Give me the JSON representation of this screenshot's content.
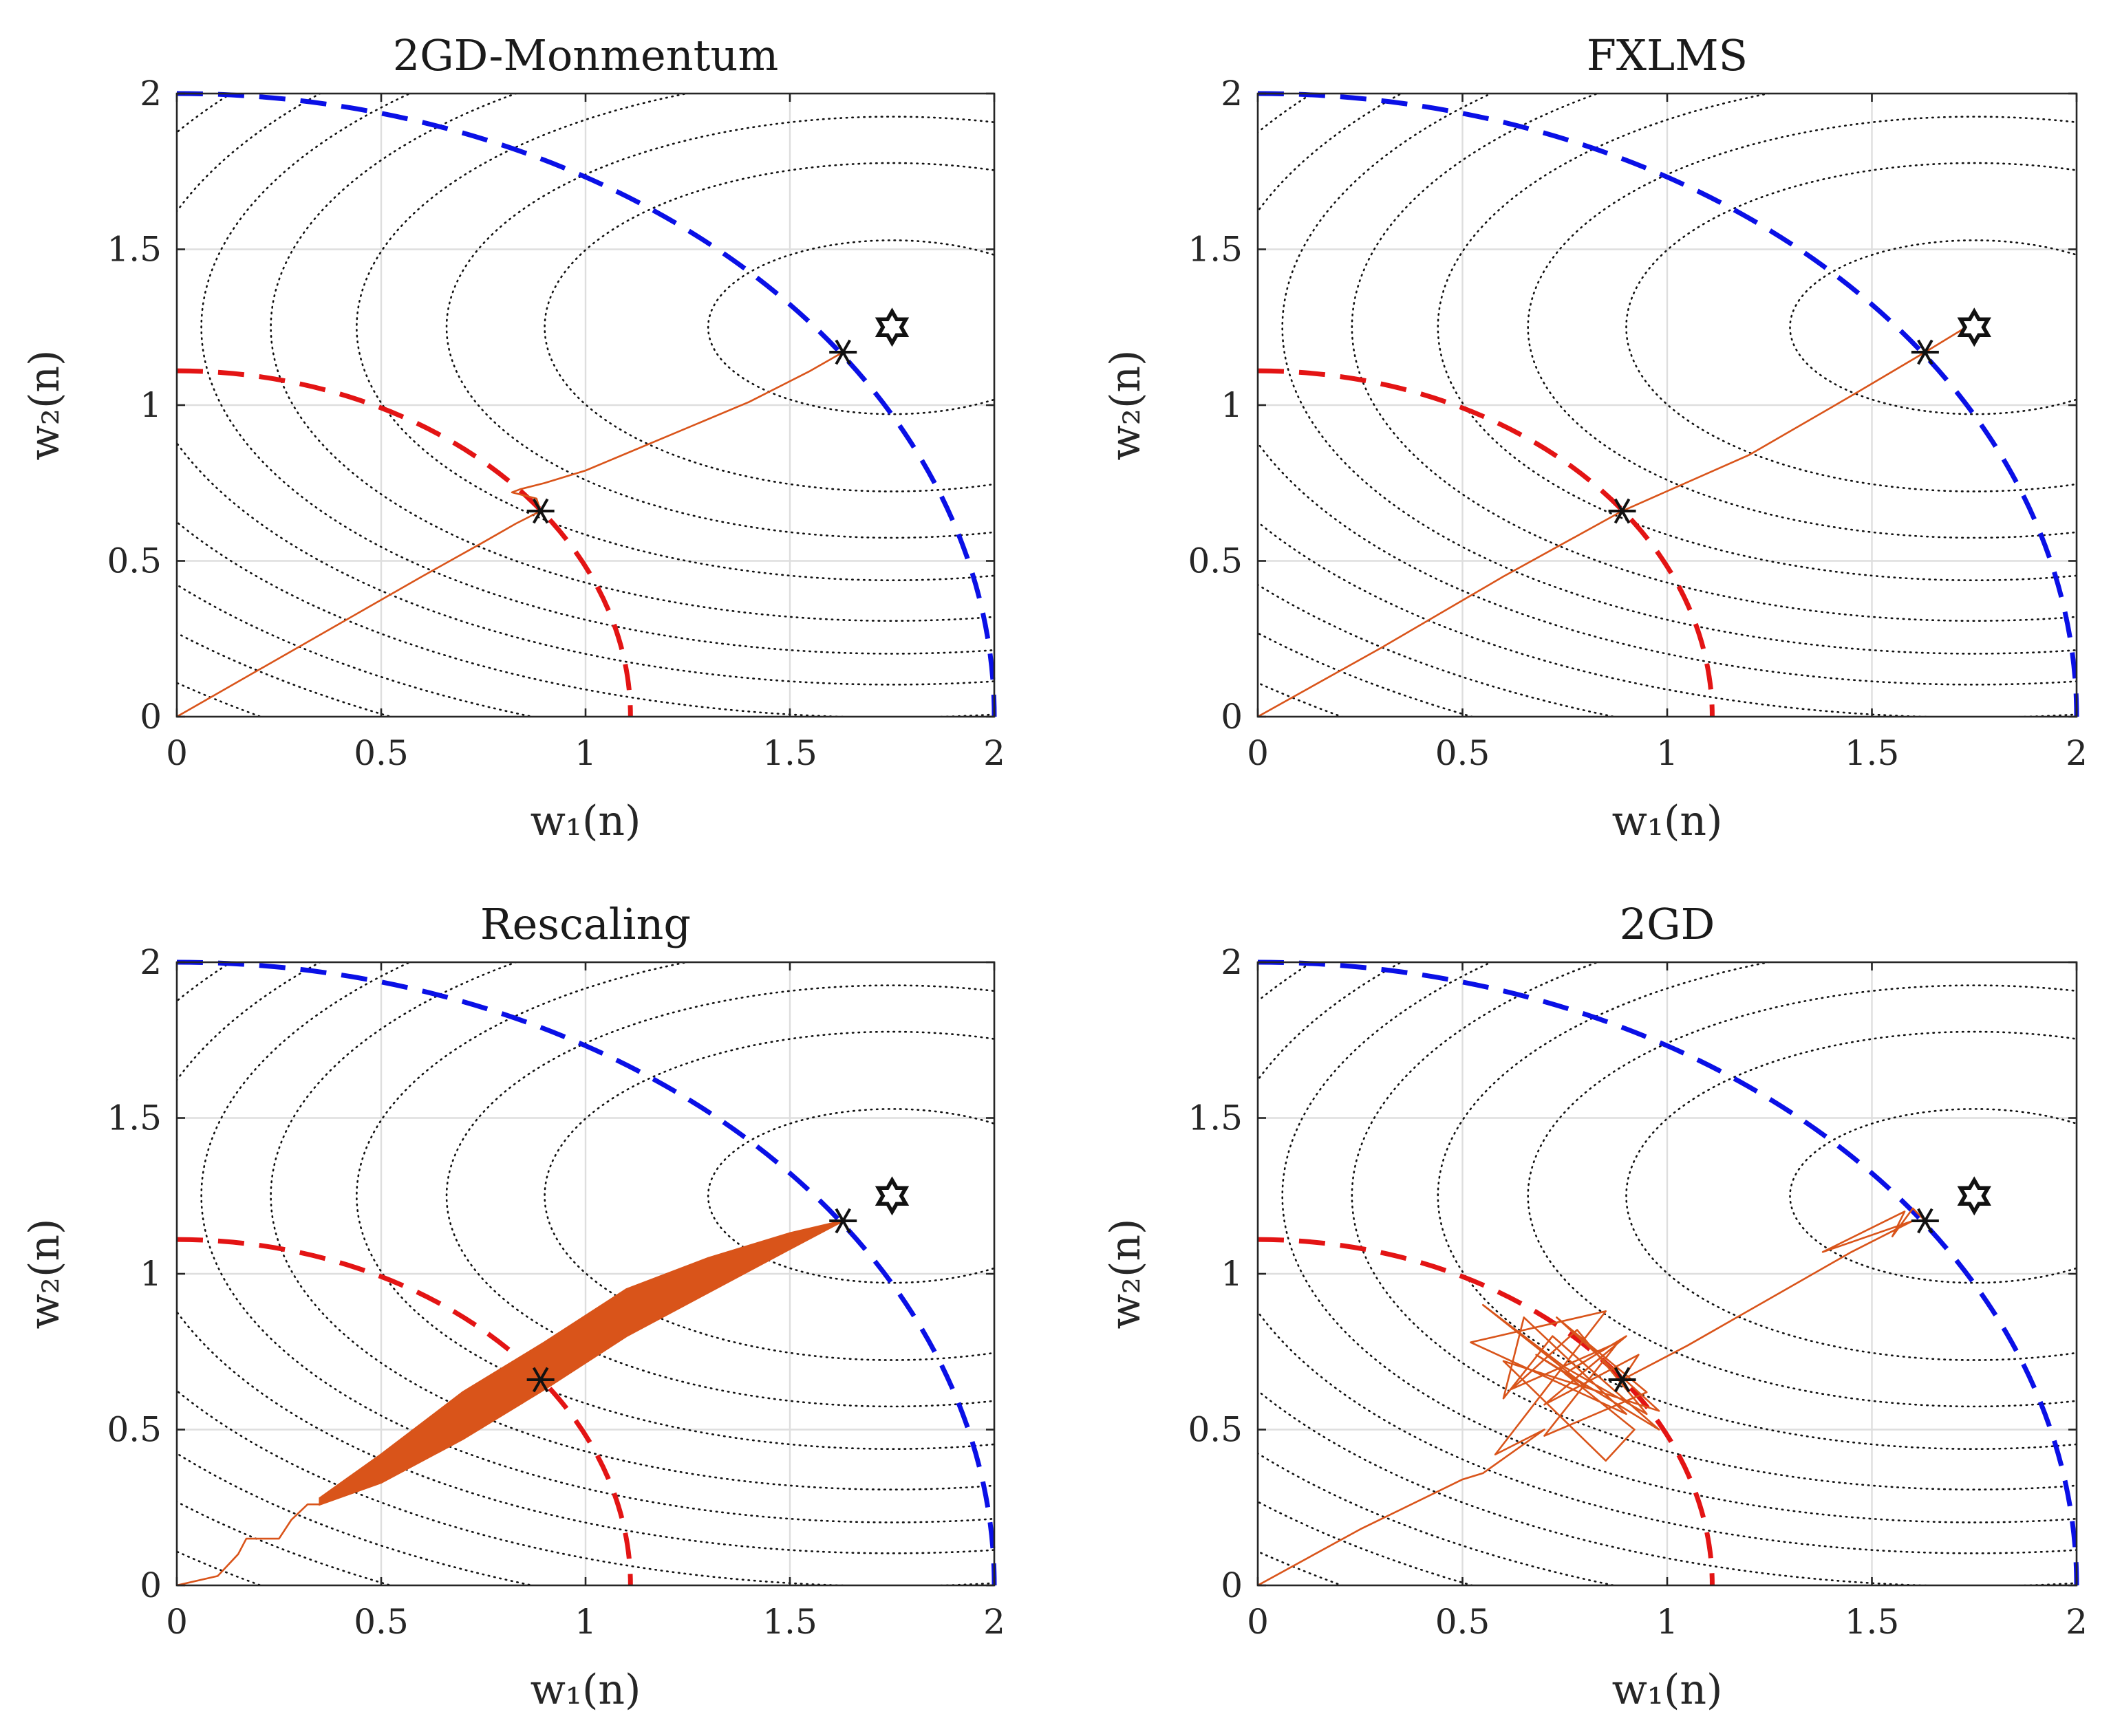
{
  "colors": {
    "trajectory": "#d9541a",
    "outer_constraint": "#0a10e6",
    "inner_constraint": "#e31414",
    "contour": "#111111",
    "grid": "#dedede"
  },
  "chart_data": [
    {
      "type": "line",
      "title": "2GD-Monmentum",
      "xlabel": "w₁(n)",
      "ylabel": "w₂(n)",
      "xlim": [
        0,
        2
      ],
      "ylim": [
        0,
        2
      ],
      "xticks": [
        "0",
        "0.5",
        "1",
        "1.5",
        "2"
      ],
      "yticks": [
        "0",
        "0.5",
        "1",
        "1.5",
        "2"
      ],
      "grid": true,
      "unconstrained_optimum": [
        1.75,
        1.25
      ],
      "constrained_optima": [
        [
          0.89,
          0.66
        ],
        [
          1.63,
          1.17
        ]
      ],
      "constraint_radii": [
        2.0,
        1.11
      ],
      "contours": {
        "center": [
          1.75,
          1.25
        ],
        "scale_x": 1.0,
        "scale_y": 0.62,
        "radii": [
          0.45,
          0.85,
          1.09,
          1.31,
          1.52,
          1.69,
          1.85,
          2.02,
          2.2,
          2.36,
          2.54,
          2.71,
          2.89,
          3.07
        ]
      },
      "series": [
        {
          "name": "trajectory",
          "x": [
            0,
            0.2,
            0.4,
            0.6,
            0.75,
            0.83,
            0.89,
            0.88,
            0.82,
            0.84,
            0.9,
            1.0,
            1.2,
            1.4,
            1.55,
            1.63
          ],
          "y": [
            0,
            0.15,
            0.3,
            0.45,
            0.56,
            0.62,
            0.66,
            0.7,
            0.72,
            0.73,
            0.75,
            0.79,
            0.9,
            1.01,
            1.11,
            1.17
          ]
        }
      ]
    },
    {
      "type": "line",
      "title": "FXLMS",
      "xlabel": "w₁(n)",
      "ylabel": "w₂(n)",
      "xlim": [
        0,
        2
      ],
      "ylim": [
        0,
        2
      ],
      "xticks": [
        "0",
        "0.5",
        "1",
        "1.5",
        "2"
      ],
      "yticks": [
        "0",
        "0.5",
        "1",
        "1.5",
        "2"
      ],
      "grid": true,
      "unconstrained_optimum": [
        1.75,
        1.25
      ],
      "constrained_optima": [
        [
          0.89,
          0.66
        ],
        [
          1.63,
          1.17
        ]
      ],
      "constraint_radii": [
        2.0,
        1.11
      ],
      "contours": {
        "center": [
          1.75,
          1.25
        ],
        "scale_x": 1.0,
        "scale_y": 0.62,
        "radii": [
          0.45,
          0.85,
          1.09,
          1.31,
          1.52,
          1.69,
          1.85,
          2.02,
          2.2,
          2.36,
          2.54,
          2.71,
          2.89,
          3.07
        ]
      },
      "series": [
        {
          "name": "trajectory",
          "x": [
            0,
            0.3,
            0.6,
            0.89,
            1.2,
            1.45,
            1.63,
            1.68,
            1.73
          ],
          "y": [
            0,
            0.22,
            0.45,
            0.66,
            0.84,
            1.03,
            1.17,
            1.21,
            1.25
          ]
        }
      ]
    },
    {
      "type": "line",
      "title": "Rescaling",
      "xlabel": "w₁(n)",
      "ylabel": "w₂(n)",
      "xlim": [
        0,
        2
      ],
      "ylim": [
        0,
        2
      ],
      "xticks": [
        "0",
        "0.5",
        "1",
        "1.5",
        "2"
      ],
      "yticks": [
        "0",
        "0.5",
        "1",
        "1.5",
        "2"
      ],
      "grid": true,
      "unconstrained_optimum": [
        1.75,
        1.25
      ],
      "constrained_optima": [
        [
          0.89,
          0.66
        ],
        [
          1.63,
          1.17
        ]
      ],
      "constraint_radii": [
        2.0,
        1.11
      ],
      "contours": {
        "center": [
          1.75,
          1.25
        ],
        "scale_x": 1.0,
        "scale_y": 0.62,
        "radii": [
          0.45,
          0.85,
          1.09,
          1.31,
          1.52,
          1.69,
          1.85,
          2.02,
          2.2,
          2.36,
          2.54,
          2.71,
          2.89,
          3.07
        ]
      },
      "series": [
        {
          "name": "trajectory",
          "x": [
            0,
            0.1,
            0.15,
            0.17,
            0.25,
            0.28,
            0.32,
            0.35
          ],
          "y": [
            0,
            0.03,
            0.1,
            0.15,
            0.15,
            0.21,
            0.26,
            0.26
          ]
        },
        {
          "name": "oscillation-band-upper",
          "x": [
            0.35,
            0.5,
            0.7,
            0.9,
            1.1,
            1.3,
            1.5,
            1.63
          ],
          "y": [
            0.28,
            0.42,
            0.62,
            0.78,
            0.95,
            1.05,
            1.13,
            1.17
          ]
        },
        {
          "name": "oscillation-band-lower",
          "x": [
            1.63,
            1.5,
            1.3,
            1.1,
            0.9,
            0.7,
            0.5,
            0.35
          ],
          "y": [
            1.17,
            1.08,
            0.94,
            0.8,
            0.63,
            0.47,
            0.33,
            0.26
          ]
        }
      ]
    },
    {
      "type": "line",
      "title": "2GD",
      "xlabel": "w₁(n)",
      "ylabel": "w₂(n)",
      "xlim": [
        0,
        2
      ],
      "ylim": [
        0,
        2
      ],
      "xticks": [
        "0",
        "0.5",
        "1",
        "1.5",
        "2"
      ],
      "yticks": [
        "0",
        "0.5",
        "1",
        "1.5",
        "2"
      ],
      "grid": true,
      "unconstrained_optimum": [
        1.75,
        1.25
      ],
      "constrained_optima": [
        [
          0.89,
          0.66
        ],
        [
          1.63,
          1.17
        ]
      ],
      "constraint_radii": [
        2.0,
        1.11
      ],
      "contours": {
        "center": [
          1.75,
          1.25
        ],
        "scale_x": 1.0,
        "scale_y": 0.62,
        "radii": [
          0.45,
          0.85,
          1.09,
          1.31,
          1.52,
          1.69,
          1.85,
          2.02,
          2.2,
          2.36,
          2.54,
          2.71,
          2.89,
          3.07
        ]
      },
      "series": [
        {
          "name": "trajectory",
          "x": [
            0,
            0.25,
            0.5,
            0.55,
            0.7,
            0.58,
            0.85,
            0.52,
            0.9,
            0.65,
            0.6,
            0.72,
            0.98,
            0.68,
            0.8,
            0.55,
            0.75,
            0.95,
            0.78,
            0.62,
            0.88,
            0.7,
            0.95,
            0.73,
            0.98,
            0.6,
            0.85,
            0.92,
            0.75,
            0.9,
            0.7,
            0.93,
            0.89,
            1.05,
            1.25,
            1.45,
            1.6,
            1.38,
            1.58,
            1.55,
            1.6,
            1.63
          ],
          "y": [
            0,
            0.18,
            0.34,
            0.36,
            0.5,
            0.42,
            0.88,
            0.78,
            0.55,
            0.86,
            0.6,
            0.8,
            0.5,
            0.74,
            0.64,
            0.9,
            0.7,
            0.55,
            0.82,
            0.63,
            0.78,
            0.48,
            0.62,
            0.86,
            0.56,
            0.72,
            0.4,
            0.5,
            0.68,
            0.8,
            0.58,
            0.74,
            0.66,
            0.77,
            0.92,
            1.07,
            1.17,
            1.07,
            1.2,
            1.12,
            1.21,
            1.17
          ]
        }
      ]
    }
  ]
}
